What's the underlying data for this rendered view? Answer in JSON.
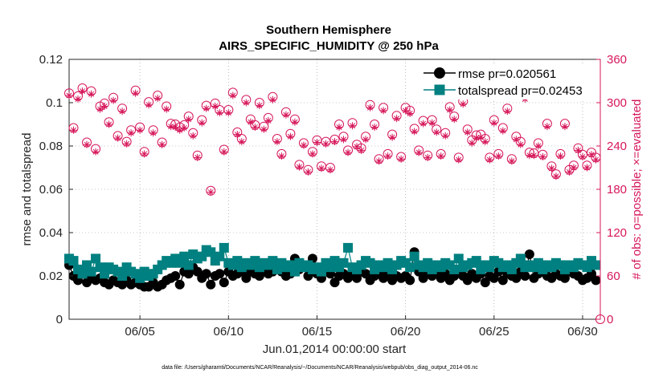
{
  "chart_data": {
    "type": "line",
    "title": "Southern Hemisphere",
    "subtitle": "AIRS_SPECIFIC_HUMIDITY @ 250 hPa",
    "xlabel": "Jun.01,2014 00:00:00 start",
    "ylabel": "rmse and totalspread",
    "ylabel_right": "# of obs: o=possible; ×=evaluated",
    "footnote": "data file: /Users/gharamti/Documents/NCAR/Reanalysis/~/Documents/NCAR/Reanalysis/webpub/obs_diag_output_2014-06.nc",
    "xlim": [
      1,
      31
    ],
    "ylim": [
      0,
      0.12
    ],
    "ylim_right": [
      0,
      360
    ],
    "x_ticks": [
      5,
      10,
      15,
      20,
      25,
      30
    ],
    "x_tick_labels": [
      "06/05",
      "06/10",
      "06/15",
      "06/20",
      "06/25",
      "06/30"
    ],
    "y_ticks": [
      0,
      0.02,
      0.04,
      0.06,
      0.08,
      0.1,
      0.12
    ],
    "y_tick_labels": [
      "0",
      "0.02",
      "0.04",
      "0.06",
      "0.08",
      "0.1",
      "0.12"
    ],
    "y_ticks_right": [
      0,
      60,
      120,
      180,
      240,
      300,
      360
    ],
    "y_tick_labels_right": [
      "0",
      "60",
      "120",
      "180",
      "240",
      "300",
      "360"
    ],
    "grid": true,
    "legend_position": "top-right",
    "colors": {
      "rmse": "#000000",
      "spread": "#008080",
      "obs": "#d6175a"
    },
    "series": [
      {
        "name": "rmse pr=0.020561",
        "marker": "circle",
        "x": [
          1.0,
          1.25,
          1.5,
          1.75,
          2.0,
          2.25,
          2.5,
          2.75,
          3.0,
          3.25,
          3.5,
          3.75,
          4.0,
          4.25,
          4.5,
          4.75,
          5.0,
          5.25,
          5.5,
          5.75,
          6.0,
          6.25,
          6.5,
          6.75,
          7.0,
          7.25,
          7.5,
          7.75,
          8.0,
          8.25,
          8.5,
          8.75,
          9.0,
          9.25,
          9.5,
          9.75,
          10.0,
          10.25,
          10.5,
          10.75,
          11.0,
          11.25,
          11.5,
          11.75,
          12.0,
          12.25,
          12.5,
          12.75,
          13.0,
          13.25,
          13.5,
          13.75,
          14.0,
          14.25,
          14.5,
          14.75,
          15.0,
          15.25,
          15.5,
          15.75,
          16.0,
          16.25,
          16.5,
          16.75,
          17.0,
          17.25,
          17.5,
          17.75,
          18.0,
          18.25,
          18.5,
          18.75,
          19.0,
          19.25,
          19.5,
          19.75,
          20.0,
          20.25,
          20.5,
          20.75,
          21.0,
          21.25,
          21.5,
          21.75,
          22.0,
          22.25,
          22.5,
          22.75,
          23.0,
          23.25,
          23.5,
          23.75,
          24.0,
          24.25,
          24.5,
          24.75,
          25.0,
          25.25,
          25.5,
          25.75,
          26.0,
          26.25,
          26.5,
          26.75,
          27.0,
          27.25,
          27.5,
          27.75,
          28.0,
          28.25,
          28.5,
          28.75,
          29.0,
          29.25,
          29.5,
          29.75,
          30.0,
          30.25,
          30.5,
          30.75
        ],
        "values": [
          0.025,
          0.02,
          0.018,
          0.021,
          0.017,
          0.02,
          0.018,
          0.019,
          0.017,
          0.016,
          0.018,
          0.017,
          0.016,
          0.018,
          0.016,
          0.017,
          0.016,
          0.015,
          0.015,
          0.017,
          0.015,
          0.016,
          0.018,
          0.019,
          0.02,
          0.016,
          0.022,
          0.021,
          0.024,
          0.022,
          0.019,
          0.021,
          0.016,
          0.02,
          0.021,
          0.017,
          0.022,
          0.02,
          0.021,
          0.022,
          0.019,
          0.022,
          0.021,
          0.02,
          0.023,
          0.021,
          0.022,
          0.024,
          0.022,
          0.02,
          0.021,
          0.028,
          0.023,
          0.025,
          0.02,
          0.028,
          0.021,
          0.019,
          0.022,
          0.021,
          0.017,
          0.02,
          0.021,
          0.019,
          0.021,
          0.019,
          0.022,
          0.021,
          0.018,
          0.02,
          0.022,
          0.019,
          0.021,
          0.018,
          0.02,
          0.019,
          0.02,
          0.018,
          0.031,
          0.022,
          0.019,
          0.021,
          0.02,
          0.022,
          0.019,
          0.021,
          0.018,
          0.02,
          0.022,
          0.02,
          0.018,
          0.021,
          0.019,
          0.021,
          0.017,
          0.02,
          0.019,
          0.022,
          0.018,
          0.021,
          0.02,
          0.019,
          0.022,
          0.02,
          0.03,
          0.019,
          0.021,
          0.022,
          0.02,
          0.019,
          0.021,
          0.02,
          0.019,
          0.022,
          0.021,
          0.02,
          0.018,
          0.019,
          0.021,
          0.018
        ]
      },
      {
        "name": "totalspread pr=0.02453",
        "marker": "square",
        "x": [
          1.0,
          1.25,
          1.5,
          1.75,
          2.0,
          2.25,
          2.5,
          2.75,
          3.0,
          3.25,
          3.5,
          3.75,
          4.0,
          4.25,
          4.5,
          4.75,
          5.0,
          5.25,
          5.5,
          5.75,
          6.0,
          6.25,
          6.5,
          6.75,
          7.0,
          7.25,
          7.5,
          7.75,
          8.0,
          8.25,
          8.5,
          8.75,
          9.0,
          9.25,
          9.5,
          9.75,
          10.0,
          10.25,
          10.5,
          10.75,
          11.0,
          11.25,
          11.5,
          11.75,
          12.0,
          12.25,
          12.5,
          12.75,
          13.0,
          13.25,
          13.5,
          13.75,
          14.0,
          14.25,
          14.5,
          14.75,
          15.0,
          15.25,
          15.5,
          15.75,
          16.0,
          16.25,
          16.5,
          16.75,
          17.0,
          17.25,
          17.5,
          17.75,
          18.0,
          18.25,
          18.5,
          18.75,
          19.0,
          19.25,
          19.5,
          19.75,
          20.0,
          20.25,
          20.5,
          20.75,
          21.0,
          21.25,
          21.5,
          21.75,
          22.0,
          22.25,
          22.5,
          22.75,
          23.0,
          23.25,
          23.5,
          23.75,
          24.0,
          24.25,
          24.5,
          24.75,
          25.0,
          25.25,
          25.5,
          25.75,
          26.0,
          26.25,
          26.5,
          26.75,
          27.0,
          27.25,
          27.5,
          27.75,
          28.0,
          28.25,
          28.5,
          28.75,
          29.0,
          29.25,
          29.5,
          29.75,
          30.0,
          30.25,
          30.5,
          30.75
        ],
        "values": [
          0.028,
          0.027,
          0.023,
          0.021,
          0.025,
          0.022,
          0.028,
          0.024,
          0.021,
          0.024,
          0.023,
          0.022,
          0.02,
          0.024,
          0.022,
          0.021,
          0.019,
          0.022,
          0.02,
          0.021,
          0.023,
          0.025,
          0.027,
          0.026,
          0.028,
          0.026,
          0.029,
          0.025,
          0.03,
          0.028,
          0.029,
          0.032,
          0.031,
          0.027,
          0.029,
          0.033,
          0.026,
          0.025,
          0.027,
          0.024,
          0.026,
          0.025,
          0.027,
          0.024,
          0.026,
          0.025,
          0.027,
          0.023,
          0.026,
          0.024,
          0.025,
          0.022,
          0.026,
          0.024,
          0.025,
          0.023,
          0.024,
          0.022,
          0.026,
          0.024,
          0.027,
          0.024,
          0.026,
          0.033,
          0.024,
          0.023,
          0.025,
          0.027,
          0.026,
          0.023,
          0.025,
          0.024,
          0.026,
          0.023,
          0.025,
          0.027,
          0.026,
          0.024,
          0.029,
          0.025,
          0.024,
          0.026,
          0.023,
          0.025,
          0.024,
          0.026,
          0.025,
          0.023,
          0.028,
          0.024,
          0.025,
          0.026,
          0.027,
          0.023,
          0.025,
          0.024,
          0.027,
          0.026,
          0.024,
          0.025,
          0.023,
          0.026,
          0.028,
          0.024,
          0.025,
          0.024,
          0.026,
          0.023,
          0.025,
          0.024,
          0.026,
          0.025,
          0.023,
          0.025,
          0.024,
          0.026,
          0.025,
          0.024,
          0.027,
          0.025
        ]
      },
      {
        "name": "possible",
        "marker": "open-circle",
        "axis": "right",
        "x": [
          1.0,
          1.25,
          1.5,
          1.75,
          2.0,
          2.25,
          2.5,
          2.75,
          3.0,
          3.25,
          3.5,
          3.75,
          4.0,
          4.25,
          4.5,
          4.75,
          5.0,
          5.25,
          5.5,
          5.75,
          6.0,
          6.25,
          6.5,
          6.75,
          7.0,
          7.25,
          7.5,
          7.75,
          8.0,
          8.25,
          8.5,
          8.75,
          9.0,
          9.25,
          9.5,
          9.75,
          10.0,
          10.25,
          10.5,
          10.75,
          11.0,
          11.25,
          11.5,
          11.75,
          12.0,
          12.25,
          12.5,
          12.75,
          13.0,
          13.25,
          13.5,
          13.75,
          14.0,
          14.25,
          14.5,
          14.75,
          15.0,
          15.25,
          15.5,
          15.75,
          16.0,
          16.25,
          16.5,
          16.75,
          17.0,
          17.25,
          17.5,
          17.75,
          18.0,
          18.25,
          18.5,
          18.75,
          19.0,
          19.25,
          19.5,
          19.75,
          20.0,
          20.25,
          20.5,
          20.75,
          21.0,
          21.25,
          21.5,
          21.75,
          22.0,
          22.25,
          22.5,
          22.75,
          23.0,
          23.25,
          23.5,
          23.75,
          24.0,
          24.25,
          24.5,
          24.75,
          25.0,
          25.25,
          25.5,
          25.75,
          26.0,
          26.25,
          26.5,
          26.75,
          27.0,
          27.25,
          27.5,
          27.75,
          28.0,
          28.25,
          28.5,
          28.75,
          29.0,
          29.25,
          29.5,
          29.75,
          30.0,
          30.25,
          30.5,
          30.75
        ],
        "values": [
          313,
          265,
          309,
          320,
          245,
          316,
          236,
          295,
          299,
          273,
          307,
          254,
          292,
          246,
          262,
          317,
          266,
          232,
          301,
          262,
          310,
          245,
          295,
          271,
          270,
          266,
          269,
          281,
          258,
          227,
          276,
          296,
          178,
          299,
          290,
          235,
          290,
          314,
          259,
          250,
          304,
          277,
          269,
          300,
          267,
          279,
          308,
          250,
          229,
          287,
          257,
          277,
          214,
          244,
          207,
          232,
          248,
          212,
          246,
          210,
          249,
          270,
          253,
          234,
          272,
          242,
          237,
          253,
          297,
          270,
          222,
          293,
          229,
          256,
          282,
          225,
          293,
          289,
          264,
          234,
          275,
          227,
          276,
          263,
          229,
          258,
          294,
          281,
          224,
          302,
          263,
          248,
          255,
          256,
          250,
          224,
          276,
          229,
          265,
          292,
          222,
          253,
          246,
          310,
          231,
          230,
          244,
          228,
          271,
          212,
          201,
          229,
          271,
          207,
          213,
          237,
          228,
          213,
          231,
          224
        ]
      },
      {
        "name": "evaluated",
        "marker": "asterisk",
        "axis": "right",
        "x": [
          1.0,
          1.25,
          1.5,
          1.75,
          2.0,
          2.25,
          2.5,
          2.75,
          3.0,
          3.25,
          3.5,
          3.75,
          4.0,
          4.25,
          4.5,
          4.75,
          5.0,
          5.25,
          5.5,
          5.75,
          6.0,
          6.25,
          6.5,
          6.75,
          7.0,
          7.25,
          7.5,
          7.75,
          8.0,
          8.25,
          8.5,
          8.75,
          9.0,
          9.25,
          9.5,
          9.75,
          10.0,
          10.25,
          10.5,
          10.75,
          11.0,
          11.25,
          11.5,
          11.75,
          12.0,
          12.25,
          12.5,
          12.75,
          13.0,
          13.25,
          13.5,
          13.75,
          14.0,
          14.25,
          14.5,
          14.75,
          15.0,
          15.25,
          15.5,
          15.75,
          16.0,
          16.25,
          16.5,
          16.75,
          17.0,
          17.25,
          17.5,
          17.75,
          18.0,
          18.25,
          18.5,
          18.75,
          19.0,
          19.25,
          19.5,
          19.75,
          20.0,
          20.25,
          20.5,
          20.75,
          21.0,
          21.25,
          21.5,
          21.75,
          22.0,
          22.25,
          22.5,
          22.75,
          23.0,
          23.25,
          23.5,
          23.75,
          24.0,
          24.25,
          24.5,
          24.75,
          25.0,
          25.25,
          25.5,
          25.75,
          26.0,
          26.25,
          26.5,
          26.75,
          27.0,
          27.25,
          27.5,
          27.75,
          28.0,
          28.25,
          28.5,
          28.75,
          29.0,
          29.25,
          29.5,
          29.75,
          30.0,
          30.25,
          30.5,
          30.75
        ],
        "values": [
          310,
          262,
          305,
          316,
          242,
          312,
          232,
          291,
          295,
          270,
          303,
          251,
          288,
          243,
          258,
          313,
          262,
          229,
          297,
          258,
          306,
          242,
          291,
          267,
          266,
          262,
          265,
          277,
          254,
          224,
          272,
          292,
          176,
          295,
          286,
          232,
          286,
          310,
          256,
          246,
          300,
          273,
          266,
          296,
          263,
          275,
          304,
          246,
          226,
          283,
          253,
          273,
          211,
          241,
          204,
          229,
          245,
          209,
          243,
          207,
          246,
          266,
          249,
          231,
          268,
          239,
          234,
          249,
          293,
          266,
          219,
          289,
          226,
          252,
          278,
          222,
          289,
          285,
          260,
          231,
          271,
          224,
          272,
          259,
          226,
          254,
          290,
          277,
          221,
          298,
          259,
          244,
          251,
          252,
          246,
          221,
          272,
          226,
          261,
          288,
          219,
          249,
          242,
          305,
          227,
          227,
          240,
          225,
          267,
          209,
          198,
          226,
          267,
          204,
          210,
          234,
          225,
          210,
          228,
          221
        ]
      }
    ],
    "last_obs_point": {
      "x": 31,
      "values_right": 0
    }
  }
}
